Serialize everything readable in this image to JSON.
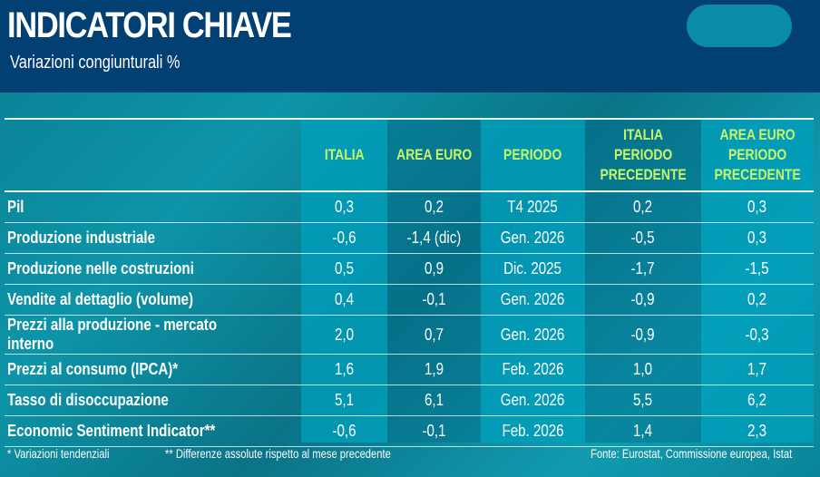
{
  "header": {
    "title": "INDICATORI CHIAVE",
    "subtitle": "Variazioni congiunturali %"
  },
  "chart_data": {
    "type": "table",
    "columns": [
      "",
      "ITALIA",
      "AREA EURO",
      "PERIODO",
      "ITALIA PERIODO PRECEDENTE",
      "AREA EURO PERIODO PRECEDENTE"
    ],
    "rows": [
      [
        "Pil",
        "0,3",
        "0,2",
        "T4 2025",
        "0,2",
        "0,3"
      ],
      [
        "Produzione industriale",
        "-0,6",
        "-1,4 (dic)",
        "Gen. 2026",
        "-0,5",
        "0,3"
      ],
      [
        "Produzione nelle costruzioni",
        "0,5",
        "0,9",
        "Dic. 2025",
        "-1,7",
        "-1,5"
      ],
      [
        "Vendite al dettaglio (volume)",
        "0,4",
        "-0,1",
        "Gen. 2026",
        "-0,9",
        "0,2"
      ],
      [
        "Prezzi alla produzione - mercato interno",
        "2,0",
        "0,7",
        "Gen. 2026",
        "-0,9",
        "-0,3"
      ],
      [
        "Prezzi al consumo (IPCA)*",
        "1,6",
        "1,9",
        "Feb. 2026",
        "1,0",
        "1,7"
      ],
      [
        "Tasso di disoccupazione",
        "5,1",
        "6,1",
        "Gen. 2026",
        "5,5",
        "6,2"
      ],
      [
        "Economic Sentiment Indicator**",
        "-0,6",
        "-0,1",
        "Feb. 2026",
        "1,4",
        "2,3"
      ]
    ]
  },
  "footer": {
    "note1": "* Variazioni tendenziali",
    "note2": "** Differenze assolute rispetto al mese precedente",
    "source": "Fonte: Eurostat, Commissione europea, Istat"
  },
  "colors": {
    "header_bg": "#023f73",
    "header_text": "#c8f56a",
    "background": "#0d94a8"
  }
}
